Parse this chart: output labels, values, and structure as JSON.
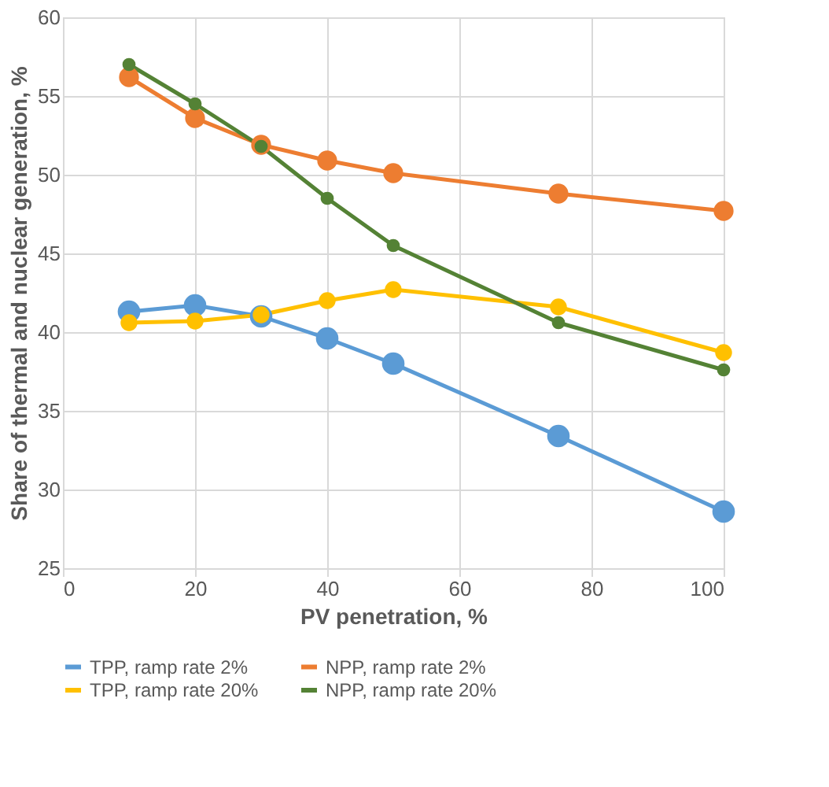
{
  "chart_data": {
    "type": "line",
    "xlabel": "PV penetration, %",
    "ylabel": "Share of thermal and nuclear generation, %",
    "x": [
      10,
      20,
      30,
      40,
      50,
      75,
      100
    ],
    "series": [
      {
        "name": "TPP, ramp rate 2%",
        "color": "#5b9bd5",
        "values": [
          41.3,
          41.7,
          41.0,
          39.6,
          38.0,
          33.4,
          28.6
        ]
      },
      {
        "name": "NPP, ramp rate 2%",
        "color": "#ed7d31",
        "values": [
          56.2,
          53.6,
          51.9,
          50.9,
          50.1,
          48.8,
          47.7
        ]
      },
      {
        "name": "TPP, ramp rate 20%",
        "color": "#ffc000",
        "values": [
          40.6,
          40.7,
          41.1,
          42.0,
          42.7,
          41.6,
          38.7
        ]
      },
      {
        "name": "NPP, ramp rate 20%",
        "color": "#548235",
        "values": [
          57.0,
          54.5,
          51.8,
          48.5,
          45.5,
          40.6,
          37.6
        ]
      }
    ],
    "xlim": [
      0,
      100
    ],
    "xticks": [
      0,
      20,
      40,
      60,
      80,
      100
    ],
    "ylim": [
      25,
      60
    ],
    "yticks": [
      25,
      30,
      35,
      40,
      45,
      50,
      55,
      60
    ],
    "grid": true,
    "legend": "bottom",
    "marker": "circle",
    "line_style": "solid"
  }
}
